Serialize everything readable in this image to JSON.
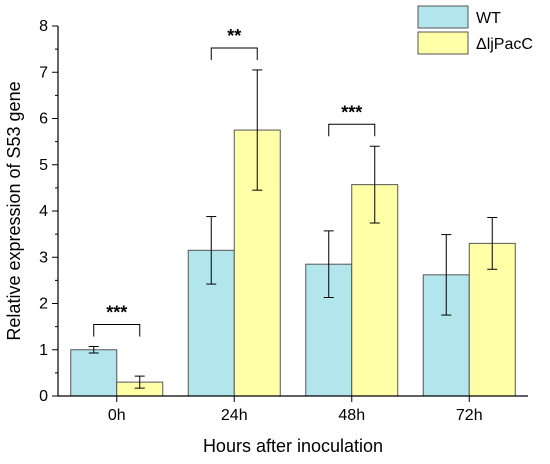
{
  "chart_data": {
    "type": "bar",
    "xlabel": "Hours after inoculation",
    "ylabel": "Relative expression of S53 gene",
    "categories": [
      "0h",
      "24h",
      "48h",
      "72h"
    ],
    "ylim": [
      0,
      8
    ],
    "yticks": [
      "0",
      "1",
      "2",
      "3",
      "4",
      "5",
      "6",
      "7",
      "8"
    ],
    "legend_position": "top-right",
    "series": [
      {
        "name": "WT",
        "color": "#b3e6ec",
        "values": [
          1.0,
          3.15,
          2.85,
          2.62
        ],
        "error": [
          0.07,
          0.73,
          0.72,
          0.87
        ]
      },
      {
        "name": "ΔljPacC",
        "color": "#ffffa8",
        "values": [
          0.3,
          5.75,
          4.57,
          3.3
        ],
        "error": [
          0.13,
          1.3,
          0.83,
          0.56
        ]
      }
    ],
    "significance": [
      {
        "category": "0h",
        "label": "***"
      },
      {
        "category": "24h",
        "label": "**"
      },
      {
        "category": "48h",
        "label": "***"
      }
    ]
  }
}
